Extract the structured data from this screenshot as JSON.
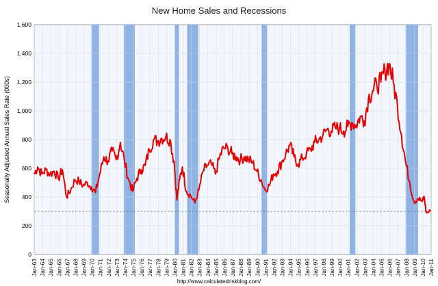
{
  "chart_data": {
    "type": "line",
    "title": "New Home Sales and Recessions",
    "ylabel": "Seasonally Adjusted Annual Sales Rate (000s)",
    "xlabel": "",
    "source": "http://www.calculatedriskblog.com/",
    "ylim": [
      0,
      1600
    ],
    "xlim": [
      "1963-01",
      "2011-01"
    ],
    "y_ticks": [
      "0",
      "200",
      "400",
      "600",
      "800",
      "1,000",
      "1,200",
      "1,400",
      "1,600"
    ],
    "x_ticks": [
      "Jan-63",
      "Jan-64",
      "Jan-65",
      "Jan-66",
      "Jan-67",
      "Jan-68",
      "Jan-69",
      "Jan-70",
      "Jan-71",
      "Jan-72",
      "Jan-73",
      "Jan-74",
      "Jan-75",
      "Jan-76",
      "Jan-77",
      "Jan-78",
      "Jan-79",
      "Jan-80",
      "Jan-81",
      "Jan-82",
      "Jan-83",
      "Jan-84",
      "Jan-85",
      "Jan-86",
      "Jan-87",
      "Jan-88",
      "Jan-89",
      "Jan-90",
      "Jan-91",
      "Jan-92",
      "Jan-93",
      "Jan-94",
      "Jan-95",
      "Jan-96",
      "Jan-97",
      "Jan-98",
      "Jan-99",
      "Jan-00",
      "Jan-01",
      "Jan-02",
      "Jan-03",
      "Jan-04",
      "Jan-05",
      "Jan-06",
      "Jan-07",
      "Jan-08",
      "Jan-09",
      "Jan-10",
      "Jan-11"
    ],
    "grid": true,
    "reference_line": 300,
    "recessions": [
      [
        "1969-12",
        "1970-11"
      ],
      [
        "1973-11",
        "1975-03"
      ],
      [
        "1980-01",
        "1980-07"
      ],
      [
        "1981-07",
        "1982-11"
      ],
      [
        "1990-07",
        "1991-03"
      ],
      [
        "2001-03",
        "2001-11"
      ],
      [
        "2007-12",
        "2009-06"
      ]
    ],
    "series": [
      {
        "x": [
          "1963-01",
          "1963-06",
          "1963-12",
          "1964-06",
          "1964-12",
          "1965-06",
          "1965-12",
          "1966-06",
          "1966-12",
          "1967-06",
          "1967-12",
          "1968-06",
          "1968-12",
          "1969-06",
          "1969-12",
          "1970-06",
          "1970-12",
          "1971-06",
          "1971-12",
          "1972-06",
          "1972-12",
          "1973-06",
          "1973-12",
          "1974-06",
          "1974-12",
          "1975-06",
          "1975-12",
          "1976-06",
          "1976-12",
          "1977-06",
          "1977-12",
          "1978-06",
          "1978-12",
          "1979-06",
          "1979-12",
          "1980-04",
          "1980-08",
          "1980-12",
          "1981-06",
          "1981-12",
          "1982-06",
          "1982-12",
          "1983-06",
          "1983-12",
          "1984-06",
          "1984-12",
          "1985-06",
          "1985-12",
          "1986-06",
          "1986-12",
          "1987-06",
          "1987-12",
          "1988-06",
          "1988-12",
          "1989-06",
          "1989-12",
          "1990-06",
          "1990-12",
          "1991-06",
          "1991-12",
          "1992-06",
          "1992-12",
          "1993-06",
          "1993-12",
          "1994-06",
          "1994-12",
          "1995-06",
          "1995-12",
          "1996-06",
          "1996-12",
          "1997-06",
          "1997-12",
          "1998-06",
          "1998-12",
          "1999-06",
          "1999-12",
          "2000-06",
          "2000-12",
          "2001-06",
          "2001-12",
          "2002-06",
          "2002-12",
          "2003-06",
          "2003-12",
          "2004-06",
          "2004-12",
          "2005-06",
          "2005-12",
          "2006-06",
          "2006-12",
          "2007-06",
          "2007-12",
          "2008-06",
          "2008-12",
          "2009-06",
          "2009-12",
          "2010-03",
          "2010-06",
          "2010-12"
        ],
        "values": [
          560,
          610,
          560,
          590,
          560,
          580,
          530,
          590,
          400,
          450,
          520,
          510,
          480,
          500,
          470,
          430,
          560,
          680,
          650,
          720,
          660,
          780,
          650,
          520,
          440,
          530,
          590,
          620,
          730,
          800,
          790,
          810,
          820,
          800,
          650,
          380,
          520,
          610,
          440,
          410,
          360,
          450,
          580,
          620,
          630,
          560,
          680,
          740,
          740,
          700,
          680,
          660,
          680,
          660,
          640,
          580,
          520,
          450,
          480,
          560,
          580,
          640,
          700,
          760,
          680,
          630,
          670,
          700,
          730,
          780,
          800,
          830,
          870,
          860,
          880,
          880,
          860,
          890,
          920,
          900,
          960,
          930,
          1090,
          1140,
          1180,
          1200,
          1280,
          1330,
          1200,
          1040,
          830,
          640,
          500,
          370,
          390,
          370,
          400,
          290,
          300
        ]
      }
    ]
  }
}
